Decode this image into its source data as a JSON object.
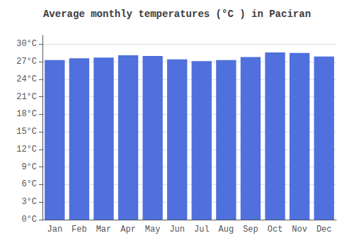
{
  "chart_data": {
    "type": "bar",
    "title": "Average monthly temperatures (°C ) in Paciran",
    "categories": [
      "Jan",
      "Feb",
      "Mar",
      "Apr",
      "May",
      "Jun",
      "Jul",
      "Aug",
      "Sep",
      "Oct",
      "Nov",
      "Dec"
    ],
    "values": [
      27.3,
      27.6,
      27.7,
      28.1,
      28.0,
      27.4,
      27.1,
      27.3,
      27.8,
      28.6,
      28.5,
      27.9
    ],
    "ylim": [
      0,
      31.5
    ],
    "yticks": [
      {
        "value": 0,
        "label": "0°C"
      },
      {
        "value": 3,
        "label": "3°C"
      },
      {
        "value": 6,
        "label": "6°C"
      },
      {
        "value": 9,
        "label": "9°C"
      },
      {
        "value": 12,
        "label": "12°C"
      },
      {
        "value": 15,
        "label": "15°C"
      },
      {
        "value": 18,
        "label": "18°C"
      },
      {
        "value": 21,
        "label": "21°C"
      },
      {
        "value": 24,
        "label": "24°C"
      },
      {
        "value": 27,
        "label": "27°C"
      },
      {
        "value": 30,
        "label": "30°C"
      }
    ],
    "grid": true
  }
}
